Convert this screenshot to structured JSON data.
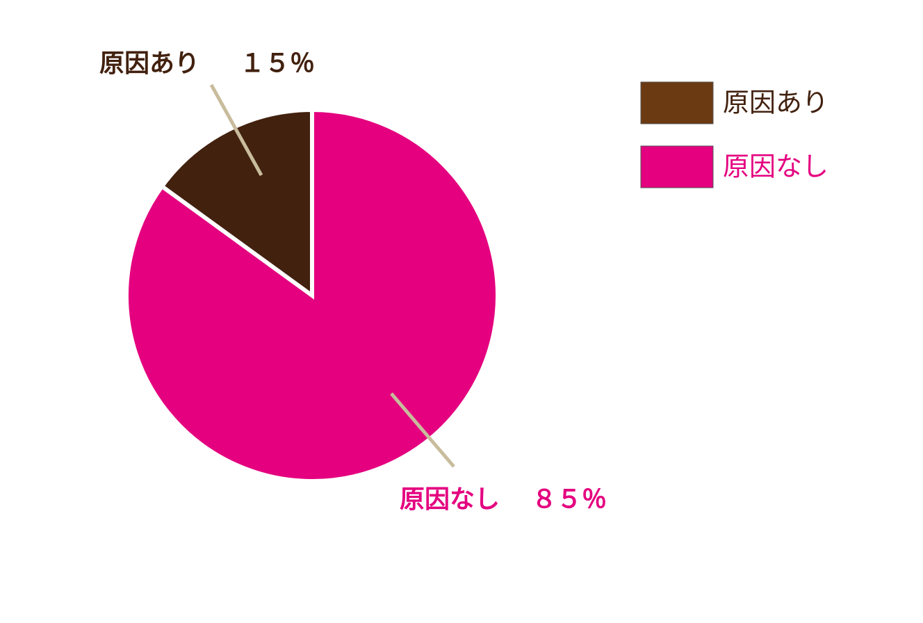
{
  "chart_data": {
    "type": "pie",
    "categories": [
      "原因あり",
      "原因なし"
    ],
    "values": [
      15,
      85
    ],
    "value_labels": [
      "１５％",
      "８５％"
    ],
    "colors": [
      "#42210f",
      "#e4007f"
    ],
    "legend_colors": [
      "#6b3a12",
      "#e4007f"
    ],
    "label_colors": [
      "#42210f",
      "#e4007f"
    ],
    "direction": "counterclockwise"
  }
}
